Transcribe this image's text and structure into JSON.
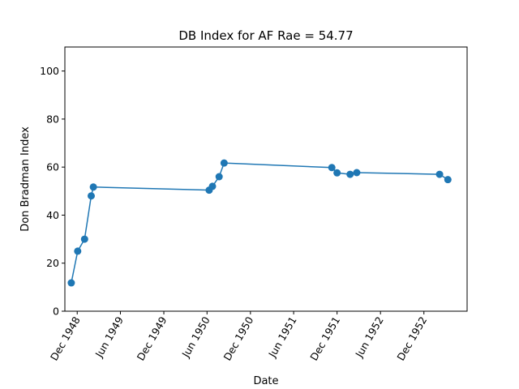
{
  "chart_data": {
    "type": "line",
    "title": "DB Index for AF Rae = 54.77",
    "xlabel": "Date",
    "ylabel": "Don Bradman Index",
    "ylim": [
      0,
      110
    ],
    "xlim": [
      "1948-10-10",
      "1953-06-01"
    ],
    "yticks": [
      0,
      20,
      40,
      60,
      80,
      100
    ],
    "xticks": [
      {
        "date": "1948-12-01",
        "label": "Dec 1948"
      },
      {
        "date": "1949-06-01",
        "label": "Jun 1949"
      },
      {
        "date": "1949-12-01",
        "label": "Dec 1949"
      },
      {
        "date": "1950-06-01",
        "label": "Jun 1950"
      },
      {
        "date": "1950-12-01",
        "label": "Dec 1950"
      },
      {
        "date": "1951-06-01",
        "label": "Jun 1951"
      },
      {
        "date": "1951-12-01",
        "label": "Dec 1951"
      },
      {
        "date": "1952-06-01",
        "label": "Jun 1952"
      },
      {
        "date": "1952-12-01",
        "label": "Dec 1952"
      }
    ],
    "grid": false,
    "legend": "none",
    "color": "#1f77b4",
    "series": [
      {
        "x": [
          "1948-11-06",
          "1948-12-03",
          "1949-01-01",
          "1949-01-29",
          "1949-02-07",
          "1950-06-10",
          "1950-06-24",
          "1950-07-22",
          "1950-08-12",
          "1951-11-09",
          "1951-12-01",
          "1952-01-25",
          "1952-02-22",
          "1953-02-05",
          "1953-03-12"
        ],
        "y": [
          11.8,
          25.0,
          30.0,
          48.0,
          51.7,
          50.4,
          52.0,
          56.0,
          61.7,
          59.8,
          57.6,
          57.0,
          57.7,
          57.0,
          54.77
        ]
      }
    ]
  }
}
